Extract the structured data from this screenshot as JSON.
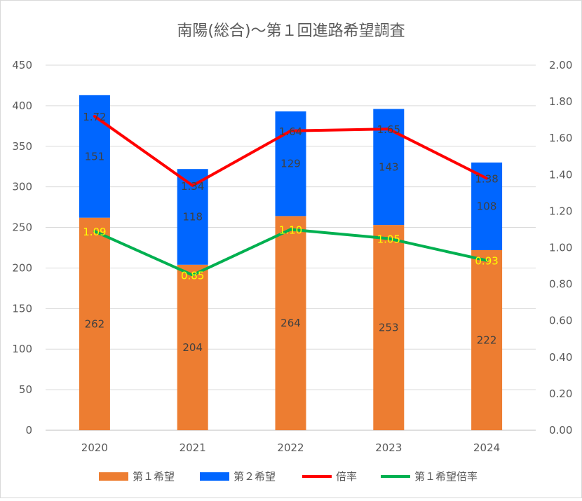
{
  "chart_data": {
    "type": "bar",
    "stacked": true,
    "title": "南陽(総合)～第１回進路希望調査",
    "categories": [
      "2020",
      "2021",
      "2022",
      "2023",
      "2024"
    ],
    "y_left": {
      "min": 0,
      "max": 450,
      "step": 50,
      "tick_labels": [
        "0",
        "50",
        "100",
        "150",
        "200",
        "250",
        "300",
        "350",
        "400",
        "450"
      ]
    },
    "y_right": {
      "min": 0,
      "max": 2,
      "step": 0.2,
      "tick_labels": [
        "0.00",
        "0.20",
        "0.40",
        "0.60",
        "0.80",
        "1.00",
        "1.20",
        "1.40",
        "1.60",
        "1.80",
        "2.00"
      ]
    },
    "grid": true,
    "legend_position": "bottom",
    "series": [
      {
        "name": "第１希望",
        "type": "bar",
        "axis": "left",
        "color": "#ed7d31",
        "values": [
          262,
          204,
          264,
          253,
          222
        ],
        "labels": [
          "262",
          "204",
          "264",
          "253",
          "222"
        ]
      },
      {
        "name": "第２希望",
        "type": "bar",
        "axis": "left",
        "color": "#0066ff",
        "values": [
          151,
          118,
          129,
          143,
          108
        ],
        "labels": [
          "151",
          "118",
          "129",
          "143",
          "108"
        ]
      },
      {
        "name": "倍率",
        "type": "line",
        "axis": "right",
        "color": "#ff0000",
        "values": [
          1.72,
          1.34,
          1.64,
          1.65,
          1.38
        ],
        "labels": [
          "1.72",
          "1.34",
          "1.64",
          "1.65",
          "1.38"
        ]
      },
      {
        "name": "第１希望倍率",
        "type": "line",
        "axis": "right",
        "color": "#00b050",
        "values": [
          1.09,
          0.85,
          1.1,
          1.05,
          0.93
        ],
        "labels": [
          "1.09",
          "0.85",
          "1.10",
          "1.05",
          "0.93"
        ]
      }
    ]
  }
}
